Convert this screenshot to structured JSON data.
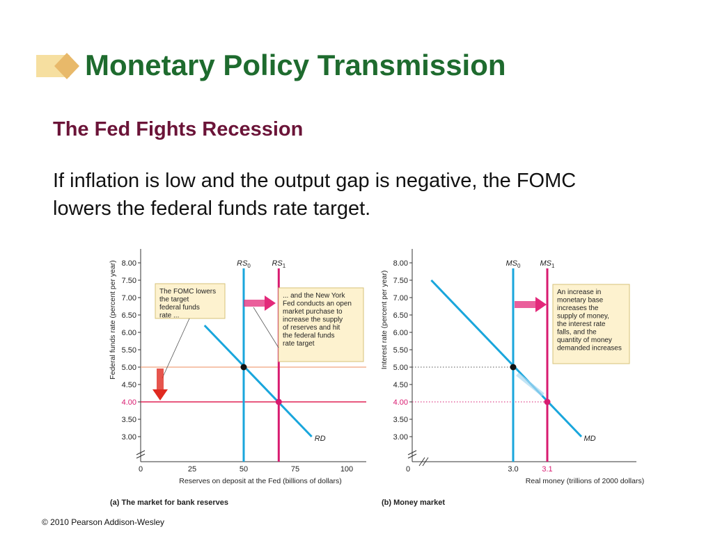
{
  "slide": {
    "title": "Monetary Policy Transmission",
    "subtitle": "The Fed Fights Recession",
    "body": "If inflation is low and the output gap is negative, the FOMC lowers the federal funds rate target.",
    "copyright": "© 2010 Pearson Addison-Wesley",
    "title_color": "#1e6b2e",
    "subtitle_color": "#6b1438",
    "deco_colors": {
      "bar": "#f6dfa0",
      "diamond": "#e8b96a"
    }
  },
  "colors": {
    "curve": "#19a6dc",
    "new_curve": "#d81b70",
    "old_level_line": "#f0a27c",
    "new_level_line": "#e02255",
    "callout_fill": "#fdf2cf",
    "callout_border": "#d6c27a",
    "arrow_blue": "#5ab8e6",
    "arrow_pink": "#e3297a",
    "arrow_red": "#e02a20"
  },
  "chart_data": [
    {
      "type": "line",
      "panel_caption": "(a) The market for bank reserves",
      "xlabel": "Reserves on deposit at the Fed (billions of dollars)",
      "ylabel": "Federal funds rate (percent per year)",
      "xlim": [
        0,
        100
      ],
      "ylim": [
        3.0,
        8.0
      ],
      "axis_break": true,
      "x_ticks": [
        "0",
        "25",
        "50",
        "75",
        "100"
      ],
      "y_ticks": [
        "3.00",
        "3.50",
        "4.00",
        "4.50",
        "5.00",
        "5.50",
        "6.00",
        "6.50",
        "7.00",
        "7.50",
        "8.00"
      ],
      "highlight_y_tick": "4.00",
      "series": [
        {
          "name": "RS0",
          "base": "RS",
          "sub": "0",
          "kind": "vertical",
          "x": 50
        },
        {
          "name": "RS1",
          "base": "RS",
          "sub": "1",
          "kind": "vertical",
          "x": 67
        },
        {
          "name": "RD",
          "base": "RD",
          "sub": "",
          "kind": "line",
          "points": [
            [
              31,
              6.2
            ],
            [
              83,
              3.0
            ]
          ]
        }
      ],
      "hlines": [
        {
          "y": 5.0,
          "style": "old"
        },
        {
          "y": 4.0,
          "style": "new"
        }
      ],
      "equilibria": [
        {
          "x": 50,
          "y": 5.0,
          "role": "old"
        },
        {
          "x": 67,
          "y": 4.0,
          "role": "new"
        }
      ],
      "annotations": [
        "The FOMC lowers the target federal funds rate ...",
        "... and the New York Fed conducts an open market purchase to increase the supply of reserves and hit the federal funds rate target"
      ]
    },
    {
      "type": "line",
      "panel_caption": "(b) Money market",
      "xlabel": "Real money (trillions of 2000 dollars)",
      "ylabel": "Interest rate (percent per year)",
      "ylim": [
        3.0,
        8.0
      ],
      "axis_break": true,
      "x_ticks": [
        "0",
        "3.0",
        "3.1"
      ],
      "highlight_x_tick": "3.1",
      "y_ticks": [
        "3.00",
        "3.50",
        "4.00",
        "4.50",
        "5.00",
        "5.50",
        "6.00",
        "6.50",
        "7.00",
        "7.50",
        "8.00"
      ],
      "highlight_y_tick": "4.00",
      "series": [
        {
          "name": "MS0",
          "base": "MS",
          "sub": "0",
          "kind": "vertical",
          "x": 3.0
        },
        {
          "name": "MS1",
          "base": "MS",
          "sub": "1",
          "kind": "vertical",
          "x": 3.1
        },
        {
          "name": "MD",
          "base": "MD",
          "sub": "",
          "kind": "line",
          "points": [
            [
              2.76,
              7.5
            ],
            [
              3.2,
              3.0
            ]
          ]
        }
      ],
      "hlines": [
        {
          "y": 5.0,
          "style": "old-dotted"
        },
        {
          "y": 4.0,
          "style": "new-dotted"
        }
      ],
      "equilibria": [
        {
          "x": 3.0,
          "y": 5.0,
          "role": "old"
        },
        {
          "x": 3.1,
          "y": 4.0,
          "role": "new"
        }
      ],
      "annotations": [
        "An increase in monetary base increases the supply of money, the interest rate falls, and the quantity of money demanded increases"
      ]
    }
  ]
}
